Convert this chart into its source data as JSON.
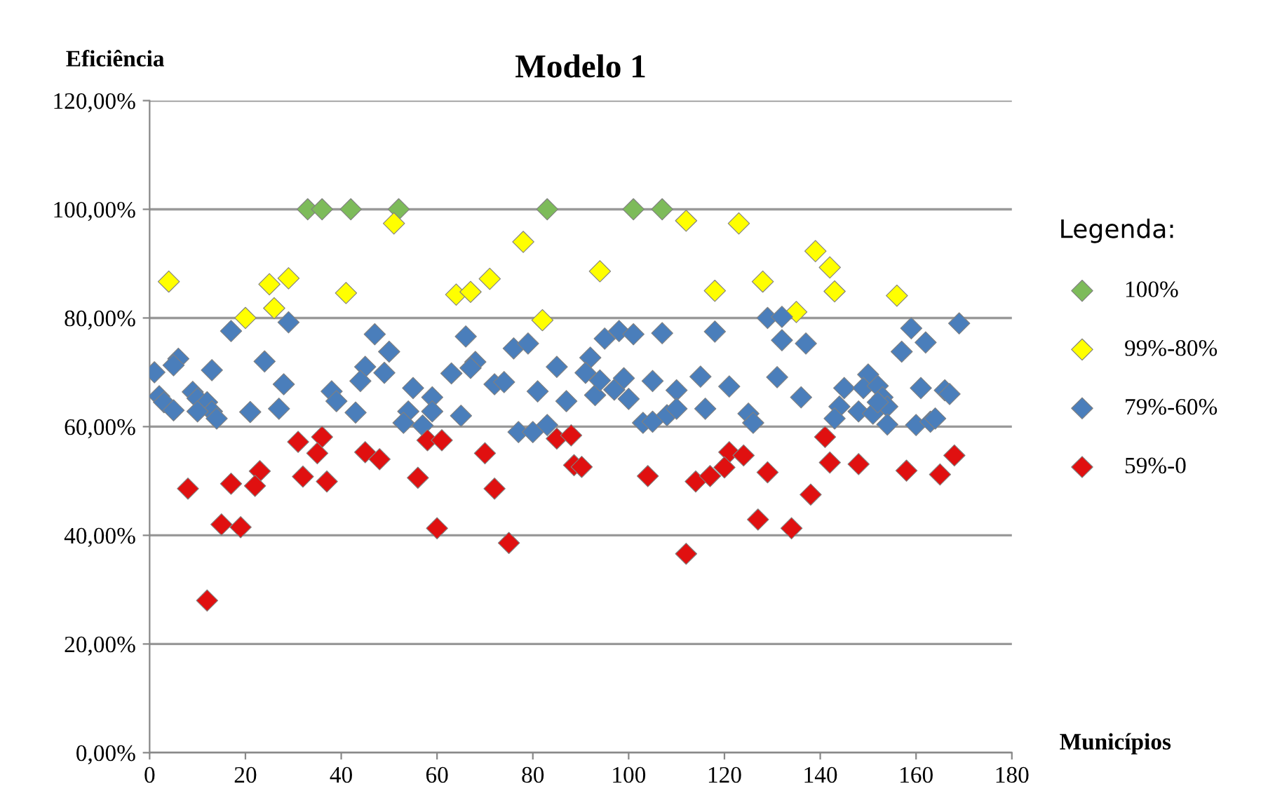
{
  "chart_data": {
    "type": "scatter",
    "title": "Modelo 1",
    "xlabel": "Municípios",
    "ylabel": "Eficiência",
    "legend_title": "Legenda:",
    "xlim": [
      0,
      180
    ],
    "xticks": [
      0,
      20,
      40,
      60,
      80,
      100,
      120,
      140,
      160,
      180
    ],
    "ylim": [
      0,
      120
    ],
    "yticks": [
      {
        "value": 0,
        "label": "0,00%"
      },
      {
        "value": 20,
        "label": "20,00%"
      },
      {
        "value": 40,
        "label": "40,00%"
      },
      {
        "value": 60,
        "label": "60,00%"
      },
      {
        "value": 80,
        "label": "80,00%"
      },
      {
        "value": 100,
        "label": "100,00%"
      },
      {
        "value": 120,
        "label": "120,00%"
      }
    ],
    "grid": "y",
    "legend": "right",
    "marker": "diamond",
    "series": [
      {
        "name": "100%",
        "color": "#7dbb5a",
        "x": [
          33,
          36,
          42,
          52,
          83,
          101,
          107
        ],
        "values": [
          100,
          100,
          100,
          100,
          100,
          100,
          100
        ]
      },
      {
        "name": "99%-80%",
        "color": "#ffff00",
        "x": [
          51,
          4,
          25,
          29,
          41,
          20,
          26,
          112,
          78,
          64,
          67,
          71,
          94,
          82,
          118,
          123,
          128,
          139,
          142,
          143,
          135,
          156
        ],
        "values": [
          97.4,
          86.7,
          86.2,
          87.3,
          84.6,
          80.0,
          81.8,
          97.9,
          94.0,
          84.3,
          84.8,
          87.2,
          88.6,
          79.6,
          85.0,
          97.4,
          86.7,
          92.3,
          89.3,
          84.9,
          81.1,
          84.1
        ]
      },
      {
        "name": "79%-60%",
        "color": "#4a7ebb",
        "x": [
          17,
          29,
          1,
          6,
          5,
          13,
          24,
          28,
          2,
          3,
          5,
          9,
          10,
          12,
          13,
          14,
          10,
          21,
          27,
          47,
          50,
          45,
          49,
          44,
          55,
          38,
          39,
          43,
          54,
          53,
          57,
          59,
          59,
          66,
          68,
          67,
          63,
          76,
          79,
          72,
          74,
          81,
          85,
          87,
          65,
          77,
          80,
          83,
          92,
          91,
          93,
          95,
          98,
          101,
          94,
          97,
          99,
          100,
          107,
          105,
          110,
          103,
          105,
          108,
          110,
          115,
          116,
          118,
          129,
          132,
          132,
          137,
          121,
          131,
          136,
          125,
          126,
          157,
          159,
          162,
          169,
          161,
          166,
          167,
          145,
          144,
          143,
          150,
          149,
          148,
          152,
          153,
          151,
          154,
          154,
          160,
          163,
          164,
          152
        ],
        "values": [
          77.6,
          79.2,
          70.0,
          72.5,
          71.3,
          70.4,
          72.0,
          67.8,
          65.6,
          64.5,
          63.0,
          66.4,
          65.2,
          64.5,
          62.8,
          61.5,
          62.8,
          62.7,
          63.3,
          77.0,
          73.8,
          71.0,
          69.9,
          68.4,
          67.1,
          66.5,
          64.7,
          62.6,
          62.8,
          60.7,
          60.2,
          65.4,
          62.8,
          76.6,
          71.9,
          70.8,
          69.8,
          74.4,
          75.3,
          67.8,
          68.2,
          66.5,
          71.0,
          64.7,
          62.0,
          59.0,
          59.0,
          60.3,
          72.7,
          69.9,
          65.8,
          76.2,
          77.6,
          77.0,
          68.5,
          66.8,
          68.9,
          65.1,
          77.2,
          68.4,
          66.7,
          60.7,
          60.9,
          62.1,
          63.3,
          69.2,
          63.3,
          77.5,
          80.0,
          80.2,
          75.9,
          75.3,
          67.4,
          69.1,
          65.4,
          62.4,
          60.7,
          73.8,
          78.1,
          75.5,
          79.0,
          67.1,
          66.7,
          66.0,
          67.1,
          63.7,
          61.5,
          69.6,
          67.1,
          62.8,
          67.5,
          65.4,
          62.4,
          63.7,
          60.4,
          60.3,
          60.9,
          61.5,
          64.5
        ]
      },
      {
        "name": "59%-0",
        "color": "#e01010",
        "x": [
          36,
          31,
          35,
          23,
          17,
          22,
          32,
          37,
          8,
          15,
          19,
          12,
          45,
          48,
          56,
          58,
          61,
          60,
          70,
          72,
          75,
          85,
          88,
          88.6,
          90.2,
          104,
          112,
          114,
          117,
          121,
          124,
          120,
          129,
          127,
          134,
          138,
          141,
          142,
          148,
          158,
          165,
          168
        ],
        "values": [
          58.1,
          57.2,
          55.1,
          51.8,
          49.5,
          49.1,
          50.8,
          49.9,
          48.6,
          42.0,
          41.5,
          28.0,
          55.3,
          54.0,
          50.6,
          57.5,
          57.5,
          41.3,
          55.1,
          48.6,
          38.6,
          57.8,
          58.4,
          52.9,
          52.6,
          50.9,
          36.6,
          49.9,
          50.9,
          55.3,
          54.7,
          52.5,
          51.6,
          42.9,
          41.3,
          47.5,
          58.1,
          53.4,
          53.1,
          51.9,
          51.2,
          54.7
        ]
      }
    ]
  }
}
